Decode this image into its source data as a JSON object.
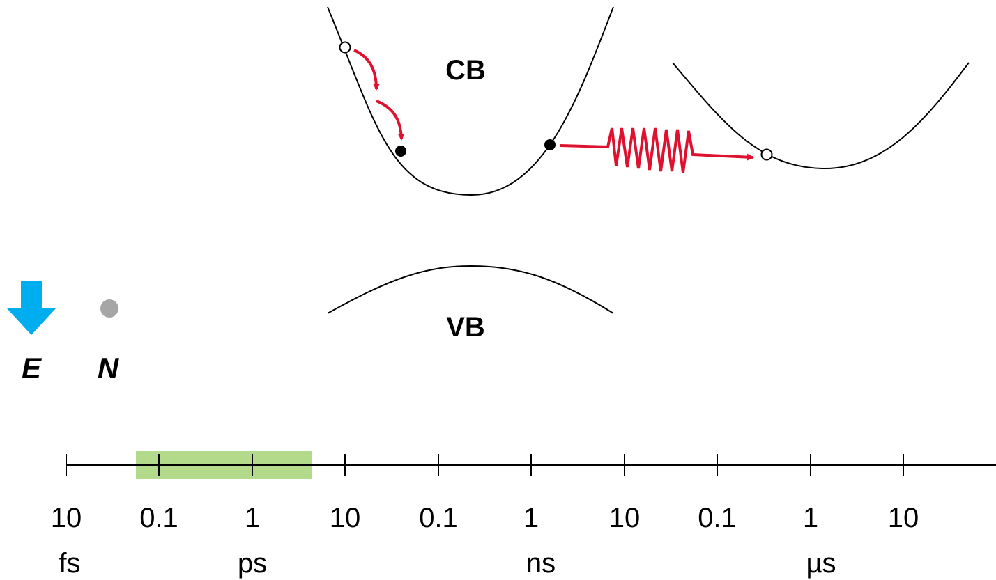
{
  "bands": {
    "conduction_label": "CB",
    "valence_label": "VB"
  },
  "legend": {
    "electron_label": "E",
    "nuclear_label": "N",
    "electron_icon": "down-arrow-icon",
    "nuclear_icon": "dot-icon"
  },
  "colors": {
    "curve": "#000000",
    "process_arrow": "#e0102f",
    "electron_arrow": "#00aeef",
    "nuclear_dot": "#a6a6a6",
    "highlight": "#b3d98a"
  },
  "timescale": {
    "tick_labels": [
      "10",
      "0.1",
      "1",
      "10",
      "0.1",
      "1",
      "10",
      "0.1",
      "1",
      "10"
    ],
    "units": [
      "fs",
      "ps",
      "ns",
      "µs"
    ],
    "highlight_range": {
      "from": "0.1 ps",
      "to": "10 ps"
    }
  }
}
